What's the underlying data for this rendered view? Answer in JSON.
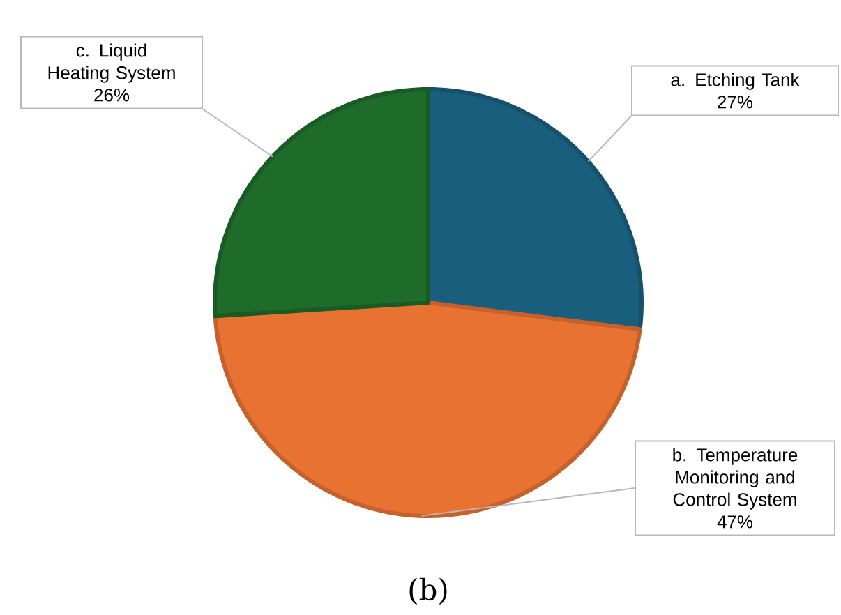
{
  "chart_data": {
    "type": "pie",
    "categories": [
      "a.    Etching Tank",
      "b.    Temperature Monitoring and Control System",
      "c.    Liquid Heating System"
    ],
    "values": [
      27,
      47,
      26
    ],
    "colors": [
      "#1a5e7e",
      "#e87232",
      "#1e6b2a"
    ],
    "value_labels": [
      "27%",
      "47%",
      "26%"
    ],
    "annotations": [
      "(b)"
    ]
  }
}
